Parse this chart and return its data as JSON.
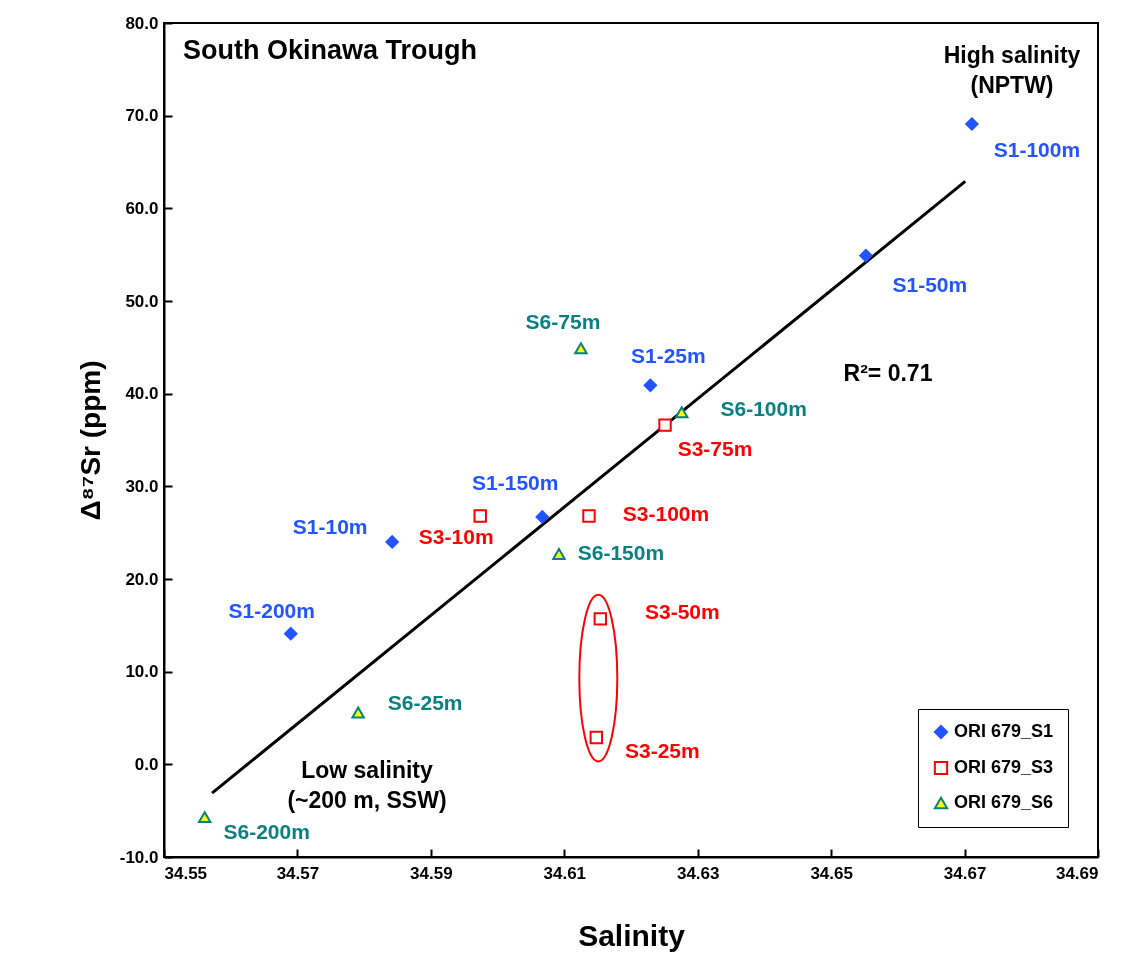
{
  "chart_data": {
    "type": "scatter",
    "title": "South Okinawa Trough",
    "xlabel": "Salinity",
    "ylabel": "Δ⁸⁷Sr (ppm)",
    "xlim": [
      34.55,
      34.69
    ],
    "xticks": [
      34.55,
      34.57,
      34.59,
      34.61,
      34.63,
      34.65,
      34.67,
      34.69
    ],
    "ylim": [
      -10,
      80
    ],
    "yticks": [
      {
        "value": -10,
        "label": "-10.0"
      },
      {
        "value": 0,
        "label": "0.0"
      },
      {
        "value": 10,
        "label": "10.0"
      },
      {
        "value": 20,
        "label": "20.0"
      },
      {
        "value": 30,
        "label": "30.0"
      },
      {
        "value": 40,
        "label": "40.0"
      },
      {
        "value": 50,
        "label": "50.0"
      },
      {
        "value": 60,
        "label": "60.0"
      },
      {
        "value": 70,
        "label": "70.0"
      },
      {
        "value": 80,
        "label": "80.0"
      }
    ],
    "grid": false,
    "legend": "bottom right",
    "series": [
      {
        "name": "ORI 679_S1",
        "color": "#2255ff",
        "marker": "diamond",
        "x": [
          34.5842,
          34.6229,
          34.6552,
          34.6711,
          34.6067,
          34.569
        ],
        "values": [
          24.0,
          40.9,
          54.9,
          69.1,
          26.7,
          14.1
        ],
        "value_labels": [
          "S1-10m",
          "S1-25m",
          "S1-50m",
          "S1-100m",
          "S1-150m",
          "S1-200m"
        ]
      },
      {
        "name": "ORI 679_S3",
        "color": "#ff0000",
        "marker": "square",
        "x": [
          34.5974,
          34.6148,
          34.6154,
          34.6251,
          34.6137
        ],
        "values": [
          26.8,
          2.9,
          15.7,
          36.6,
          26.8
        ],
        "value_labels": [
          "S3-10m",
          "S3-25m",
          "S3-50m",
          "S3-75m",
          "S3-100m"
        ]
      },
      {
        "name": "ORI 679_S6",
        "color": "#0a8080",
        "marker": "triangle",
        "x": [
          34.5791,
          34.6125,
          34.6276,
          34.6092,
          34.5561
        ],
        "values": [
          5.6,
          44.9,
          38.0,
          22.7,
          -5.7
        ],
        "value_labels": [
          "S6-25m",
          "S6-75m",
          "S6-100m",
          "S6-150m",
          "S6-200m"
        ]
      },
      {
        "type": "line",
        "color": "#000000",
        "x": [
          34.5572,
          34.6701
        ],
        "values": [
          -3.1,
          62.9
        ]
      }
    ],
    "annotations": [
      "High salinity\n(NPTW)",
      "Low salinity\n(~200 m, SSW)",
      "R²= 0.71"
    ]
  }
}
